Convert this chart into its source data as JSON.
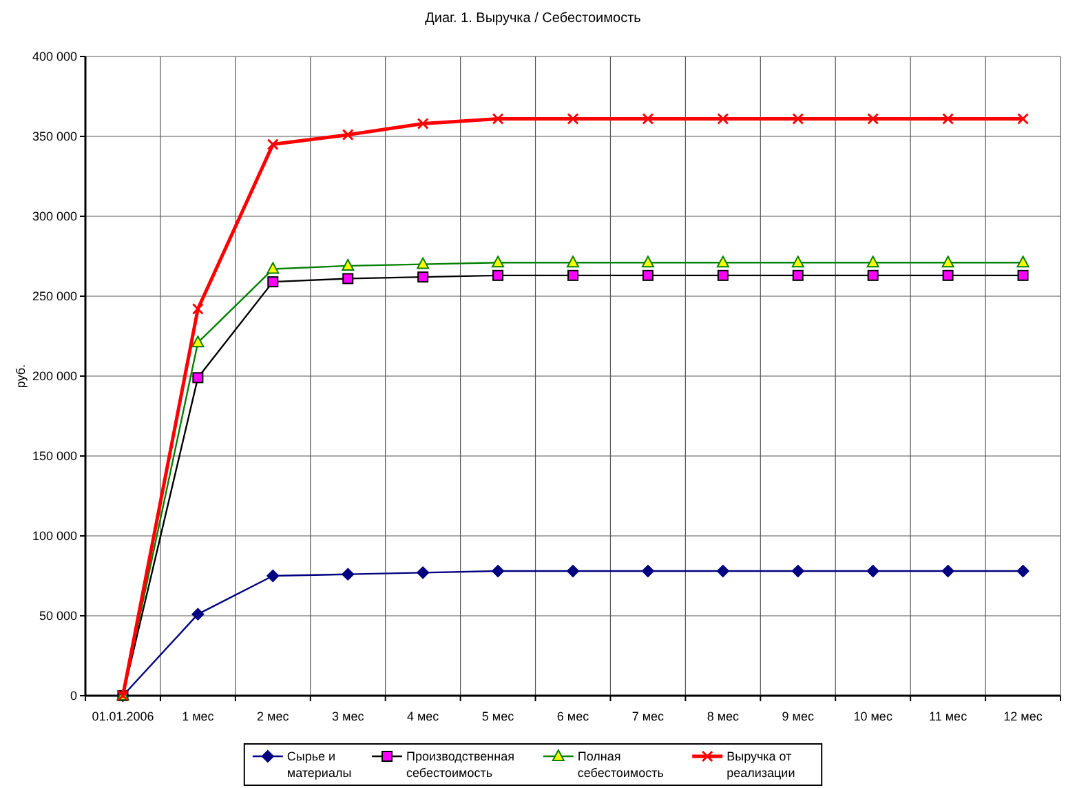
{
  "chart_data": {
    "type": "line",
    "title": "Диаг. 1. Выручка / Себестоимость",
    "ylabel": "руб.",
    "categories": [
      "01.01.2006",
      "1 мес",
      "2 мес",
      "3 мес",
      "4 мес",
      "5 мес",
      "6 мес",
      "7 мес",
      "8 мес",
      "9 мес",
      "10 мес",
      "11 мес",
      "12 мес"
    ],
    "series": [
      {
        "name": "Сырье и материалы",
        "color": "#000080",
        "marker": "diamond",
        "values": [
          0,
          51000,
          75000,
          76000,
          77000,
          78000,
          78000,
          78000,
          78000,
          78000,
          78000,
          78000,
          78000
        ]
      },
      {
        "name": "Производственная себестоимость",
        "color": "#000000",
        "marker": "square",
        "values": [
          0,
          199000,
          259000,
          261000,
          262000,
          263000,
          263000,
          263000,
          263000,
          263000,
          263000,
          263000,
          263000
        ]
      },
      {
        "name": "Полная себестоимость",
        "color": "#008000",
        "marker": "triangle",
        "values": [
          0,
          221000,
          267000,
          269000,
          270000,
          271000,
          271000,
          271000,
          271000,
          271000,
          271000,
          271000,
          271000
        ]
      },
      {
        "name": "Выручка от реализации",
        "color": "#ff0000",
        "marker": "cross",
        "values": [
          0,
          242000,
          345000,
          351000,
          358000,
          361000,
          361000,
          361000,
          361000,
          361000,
          361000,
          361000,
          361000
        ]
      }
    ],
    "ylim": [
      0,
      400000
    ],
    "yticks": [
      {
        "value": 0,
        "label": "0"
      },
      {
        "value": 50000,
        "label": "50 000"
      },
      {
        "value": 100000,
        "label": "100 000"
      },
      {
        "value": 150000,
        "label": "150 000"
      },
      {
        "value": 200000,
        "label": "200 000"
      },
      {
        "value": 250000,
        "label": "250 000"
      },
      {
        "value": 300000,
        "label": "300 000"
      },
      {
        "value": 350000,
        "label": "350 000"
      },
      {
        "value": 400000,
        "label": "400 000"
      }
    ],
    "grid": true,
    "legend": "bottom"
  }
}
